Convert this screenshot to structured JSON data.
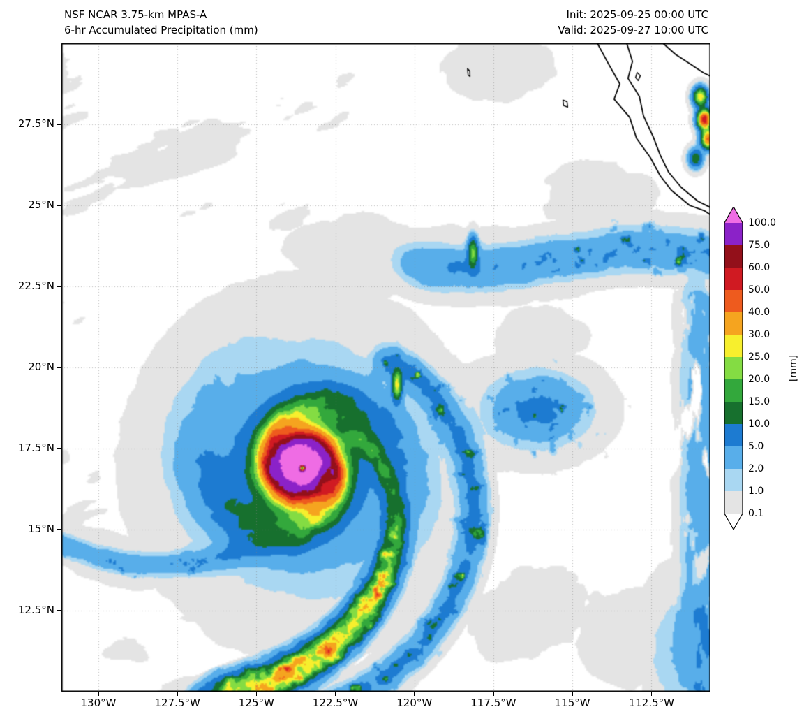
{
  "header": {
    "model": "NSF NCAR 3.75-km MPAS-A",
    "field": "6-hr Accumulated Precipitation (mm)",
    "init": "Init: 2025-09-25 00:00 UTC",
    "valid": "Valid: 2025-09-27 10:00 UTC"
  },
  "axes": {
    "x_ticks": [
      {
        "label": "130°W",
        "lon": -130
      },
      {
        "label": "127.5°W",
        "lon": -127.5
      },
      {
        "label": "125°W",
        "lon": -125
      },
      {
        "label": "122.5°W",
        "lon": -122.5
      },
      {
        "label": "120°W",
        "lon": -120
      },
      {
        "label": "117.5°W",
        "lon": -117.5
      },
      {
        "label": "115°W",
        "lon": -115
      },
      {
        "label": "112.5°W",
        "lon": -112.5
      }
    ],
    "y_ticks": [
      {
        "label": "27.5°N",
        "lat": 27.5
      },
      {
        "label": "25°N",
        "lat": 25
      },
      {
        "label": "22.5°N",
        "lat": 22.5
      },
      {
        "label": "20°N",
        "lat": 20
      },
      {
        "label": "17.5°N",
        "lat": 17.5
      },
      {
        "label": "15°N",
        "lat": 15
      },
      {
        "label": "12.5°N",
        "lat": 12.5
      }
    ]
  },
  "colorbar": {
    "units": "[mm]",
    "levels": [
      0.1,
      1.0,
      2.0,
      5.0,
      10.0,
      15.0,
      20.0,
      25.0,
      30.0,
      40.0,
      50.0,
      60.0,
      75.0,
      100.0
    ],
    "tick_labels": [
      "0.1",
      "1.0",
      "2.0",
      "5.0",
      "10.0",
      "15.0",
      "20.0",
      "25.0",
      "30.0",
      "40.0",
      "50.0",
      "60.0",
      "75.0",
      "100.0"
    ],
    "segment_colors": [
      "#e4e4e4",
      "#a9d7f2",
      "#58aeea",
      "#1d7bd1",
      "#17702e",
      "#33a83c",
      "#84dc43",
      "#f7ef2d",
      "#f5a41f",
      "#ee5b1e",
      "#d01a22",
      "#93101a",
      "#8b22c8"
    ],
    "over_color": "#ef6ce4",
    "under_color": "#ffffff"
  },
  "chart_data": {
    "type": "heatmap",
    "model": "NSF NCAR 3.75-km MPAS-A",
    "title": "6-hr Accumulated Precipitation (mm)",
    "init_time": "2025-09-25 00:00 UTC",
    "valid_time": "2025-09-27 10:00 UTC",
    "units": "mm",
    "lon_range": [
      -131.17,
      -110.63
    ],
    "lat_range": [
      10,
      30
    ],
    "levels_mm": [
      0.1,
      1.0,
      2.0,
      5.0,
      10.0,
      15.0,
      20.0,
      25.0,
      30.0,
      40.0,
      50.0,
      60.0,
      75.0,
      100.0
    ],
    "features": {
      "cyclone": {
        "lon": -123.55,
        "lat": 16.9,
        "peak_mm": 135,
        "core_sigma_deg": 0.95,
        "eye_sigma_deg": 0.11
      },
      "inner_band": {
        "r0": 3.86,
        "theta0": -0.74,
        "b": 0.552,
        "theta_min": -2.1,
        "theta_max": 0.8
      },
      "outer_band": {
        "r0": 4.3,
        "theta_ref": 0.9,
        "b": 0.23,
        "theta_min": -1.8,
        "theta_max": 1.05
      },
      "north_band": {
        "lat_center": 23.35,
        "amp_sin": 0.3,
        "west_limit_lon": -121.3,
        "strong_cells_east_of_lon": -116.8
      },
      "west_tail": {
        "lat_min_center": 13.9,
        "curv": 0.065,
        "lon_vertex": -128
      },
      "east_strip": {
        "lon_start": -112.0,
        "lat_max": 23.0
      },
      "gulf_cells": [
        [
          -110.82,
          27.65,
          58
        ],
        [
          -110.95,
          28.35,
          30
        ],
        [
          -110.7,
          27.05,
          42
        ],
        [
          -111.1,
          26.45,
          14
        ]
      ],
      "isolated_cells": [
        [
          -118.15,
          23.55,
          20
        ],
        [
          -120.55,
          19.45,
          26
        ]
      ]
    },
    "coastlines": {
      "baja_pacific": [
        [
          -114.21,
          30
        ],
        [
          -113.85,
          29.35
        ],
        [
          -113.5,
          28.75
        ],
        [
          -113.68,
          28.28
        ],
        [
          -113.19,
          27.72
        ],
        [
          -112.97,
          27.07
        ],
        [
          -112.53,
          26.47
        ],
        [
          -112.22,
          25.91
        ],
        [
          -111.87,
          25.47
        ],
        [
          -111.29,
          25.0
        ],
        [
          -110.81,
          24.83
        ],
        [
          -110.4,
          24.55
        ]
      ],
      "baja_gulf": [
        [
          -113.28,
          30
        ],
        [
          -113.1,
          29.44
        ],
        [
          -113.24,
          28.92
        ],
        [
          -112.88,
          28.36
        ],
        [
          -112.75,
          27.76
        ],
        [
          -112.44,
          27.11
        ],
        [
          -112.22,
          26.55
        ],
        [
          -111.96,
          26.03
        ],
        [
          -111.56,
          25.56
        ],
        [
          -111.03,
          25.13
        ],
        [
          -110.68,
          24.96
        ],
        [
          -110.4,
          24.75
        ]
      ],
      "mainland": [
        [
          -112.13,
          30
        ],
        [
          -111.74,
          29.66
        ],
        [
          -111.25,
          29.35
        ],
        [
          -110.85,
          29.09
        ],
        [
          -110.4,
          28.88
        ]
      ],
      "islands": [
        [
          [
            -118.32,
            29.22
          ],
          [
            -118.25,
            29.15
          ],
          [
            -118.24,
            28.98
          ],
          [
            -118.3,
            29.02
          ]
        ],
        [
          [
            -115.3,
            28.25
          ],
          [
            -115.17,
            28.2
          ],
          [
            -115.15,
            28.03
          ],
          [
            -115.28,
            28.08
          ]
        ],
        [
          [
            -112.95,
            29.1
          ],
          [
            -112.85,
            29.0
          ],
          [
            -112.92,
            28.85
          ],
          [
            -113.0,
            28.95
          ]
        ]
      ]
    }
  }
}
